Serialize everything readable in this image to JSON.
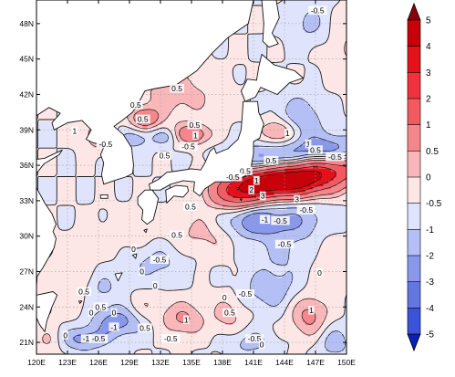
{
  "map": {
    "lon_labels": [
      "120E",
      "123E",
      "126E",
      "129E",
      "132E",
      "135E",
      "138E",
      "141E",
      "144E",
      "147E",
      "150E"
    ],
    "lat_labels": [
      "21N",
      "24N",
      "27N",
      "30N",
      "33N",
      "36N",
      "39N",
      "42N",
      "45N",
      "48N"
    ],
    "lon_range": [
      120,
      150
    ],
    "lat_range": [
      20,
      50
    ],
    "contour_labels": [
      {
        "text": "-0.5",
        "lon": 147.2,
        "lat": 49.1
      },
      {
        "text": "0.5",
        "lon": 133.6,
        "lat": 42.5
      },
      {
        "text": "0.5",
        "lon": 129.6,
        "lat": 41.1
      },
      {
        "text": "0.5",
        "lon": 130.3,
        "lat": 39.9
      },
      {
        "text": "0.5",
        "lon": 135.3,
        "lat": 39.4
      },
      {
        "text": "1",
        "lon": 123.7,
        "lat": 38.9
      },
      {
        "text": "1",
        "lon": 135.4,
        "lat": 38.5
      },
      {
        "text": "-0.5",
        "lon": 126.7,
        "lat": 37.8
      },
      {
        "text": "-0.5",
        "lon": 134.7,
        "lat": 37.6
      },
      {
        "text": "0.5",
        "lon": 132.4,
        "lat": 36.8
      },
      {
        "text": "1",
        "lon": 144.3,
        "lat": 38.7
      },
      {
        "text": "1",
        "lon": 146.3,
        "lat": 37.8
      },
      {
        "text": "0.5",
        "lon": 147.0,
        "lat": 37.3
      },
      {
        "text": "-0.5",
        "lon": 148.9,
        "lat": 36.7
      },
      {
        "text": "0.5",
        "lon": 142.7,
        "lat": 36.4
      },
      {
        "text": "0.5",
        "lon": 140.2,
        "lat": 35.5
      },
      {
        "text": "-0.5",
        "lon": 139.0,
        "lat": 35.0
      },
      {
        "text": "1",
        "lon": 141.3,
        "lat": 34.7
      },
      {
        "text": "2",
        "lon": 140.8,
        "lat": 33.9
      },
      {
        "text": "3",
        "lon": 141.9,
        "lat": 33.4
      },
      {
        "text": "3",
        "lon": 145.2,
        "lat": 33.1
      },
      {
        "text": "0.5",
        "lon": 134.9,
        "lat": 32.5
      },
      {
        "text": "-1",
        "lon": 142.1,
        "lat": 31.4
      },
      {
        "text": "-0.5",
        "lon": 143.6,
        "lat": 31.3
      },
      {
        "text": "-0.5",
        "lon": 146.1,
        "lat": 32.2
      },
      {
        "text": "-0.5",
        "lon": 144.0,
        "lat": 29.3
      },
      {
        "text": "-0.5",
        "lon": 131.9,
        "lat": 28.0
      },
      {
        "text": "0",
        "lon": 130.2,
        "lat": 27.0
      },
      {
        "text": "0",
        "lon": 131.5,
        "lat": 25.8
      },
      {
        "text": "0.5",
        "lon": 124.6,
        "lat": 25.3
      },
      {
        "text": "0.5",
        "lon": 126.2,
        "lat": 24.0
      },
      {
        "text": "0",
        "lon": 125.3,
        "lat": 23.5
      },
      {
        "text": "0",
        "lon": 127.5,
        "lat": 23.5
      },
      {
        "text": "1",
        "lon": 134.5,
        "lat": 22.9
      },
      {
        "text": "0.5",
        "lon": 130.5,
        "lat": 22.2
      },
      {
        "text": "-1",
        "lon": 127.5,
        "lat": 22.3
      },
      {
        "text": "-0.5",
        "lon": 126.0,
        "lat": 21.3
      },
      {
        "text": "-1",
        "lon": 124.8,
        "lat": 21.3
      },
      {
        "text": "0",
        "lon": 122.8,
        "lat": 21.6
      },
      {
        "text": "0",
        "lon": 138.2,
        "lat": 24.8
      },
      {
        "text": "-0.5",
        "lon": 141.1,
        "lat": 21.3
      },
      {
        "text": "0.5",
        "lon": 138.7,
        "lat": 23.5
      },
      {
        "text": "1",
        "lon": 146.6,
        "lat": 23.7
      },
      {
        "text": "0",
        "lon": 147.4,
        "lat": 26.9
      },
      {
        "text": "-0.5",
        "lon": 140.2,
        "lat": 25.1
      },
      {
        "text": "0",
        "lon": 129.4,
        "lat": 28.9
      },
      {
        "text": "0.5",
        "lon": 133.6,
        "lat": 30.1
      },
      {
        "text": "-0.5",
        "lon": 133.0,
        "lat": 21.3
      },
      {
        "text": "0",
        "lon": 141.8,
        "lat": 20.8
      }
    ]
  },
  "colorbar": {
    "labels": [
      "5",
      "4",
      "3",
      "2",
      "1",
      "0.5",
      "0",
      "-0.5",
      "-1",
      "-2",
      "-3",
      "-4",
      "-5"
    ],
    "colors": [
      "#c8000a",
      "#e4101a",
      "#f0323c",
      "#f25a62",
      "#f5868c",
      "#f9b7ba",
      "#fde6e6",
      "#dfe4fc",
      "#b3bff5",
      "#8a98eb",
      "#6476e0",
      "#3c52d8",
      "#1a30d0"
    ],
    "arrow_top_color": "#8a000b",
    "arrow_bottom_color": "#0a1eb8"
  },
  "colors": {
    "land": "#ffffff",
    "coast": "#111111",
    "contour": "#1a1a1a",
    "grid": "#a0a0a0"
  }
}
